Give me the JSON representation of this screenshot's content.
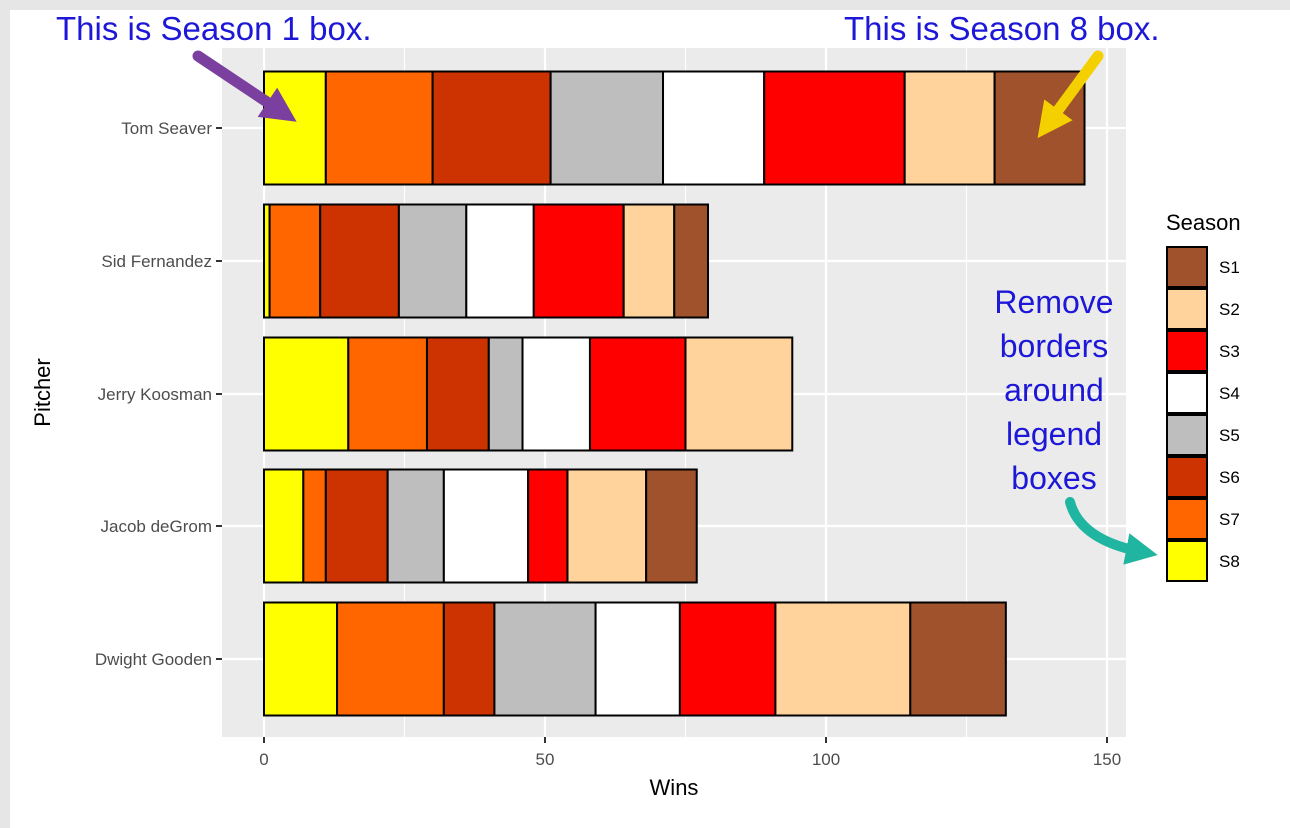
{
  "chart_data": {
    "type": "bar",
    "orientation": "horizontal",
    "stacked": true,
    "xlabel": "Wins",
    "ylabel": "Pitcher",
    "xlim": [
      0,
      150
    ],
    "x_ticks": [
      0,
      50,
      100,
      150
    ],
    "grid": true,
    "legend_title": "Season",
    "legend_position": "right",
    "categories": [
      "Tom Seaver",
      "Sid Fernandez",
      "Jerry Koosman",
      "Jacob deGrom",
      "Dwight Gooden"
    ],
    "series": [
      {
        "name": "S8",
        "color": "#ffff00",
        "values": [
          11,
          1,
          15,
          7,
          13
        ]
      },
      {
        "name": "S7",
        "color": "#ff6600",
        "values": [
          19,
          9,
          14,
          4,
          19
        ]
      },
      {
        "name": "S6",
        "color": "#cc3300",
        "values": [
          21,
          14,
          11,
          11,
          9
        ]
      },
      {
        "name": "S5",
        "color": "#bebebe",
        "values": [
          20,
          12,
          6,
          10,
          18
        ]
      },
      {
        "name": "S4",
        "color": "#ffffff",
        "values": [
          18,
          12,
          12,
          15,
          15
        ]
      },
      {
        "name": "S3",
        "color": "#ff0000",
        "values": [
          25,
          16,
          17,
          7,
          17
        ]
      },
      {
        "name": "S2",
        "color": "#ffd39b",
        "values": [
          16,
          9,
          19,
          14,
          24
        ]
      },
      {
        "name": "S1",
        "color": "#a0522d",
        "values": [
          16,
          6,
          0,
          9,
          17
        ]
      }
    ],
    "legend_order": [
      "S1",
      "S2",
      "S3",
      "S4",
      "S5",
      "S6",
      "S7",
      "S8"
    ]
  },
  "annotations": {
    "season1": "This is Season 1 box.",
    "season8": "This is Season 8 box.",
    "legend_note": "Remove borders around legend boxes"
  },
  "colors": {
    "panel_bg": "#ebebeb",
    "grid": "#ffffff",
    "annotation_text": "#1d17d8",
    "arrow_s1": "#7b3fa0",
    "arrow_s8": "#f5d000",
    "arrow_legend": "#1fb5a0"
  }
}
